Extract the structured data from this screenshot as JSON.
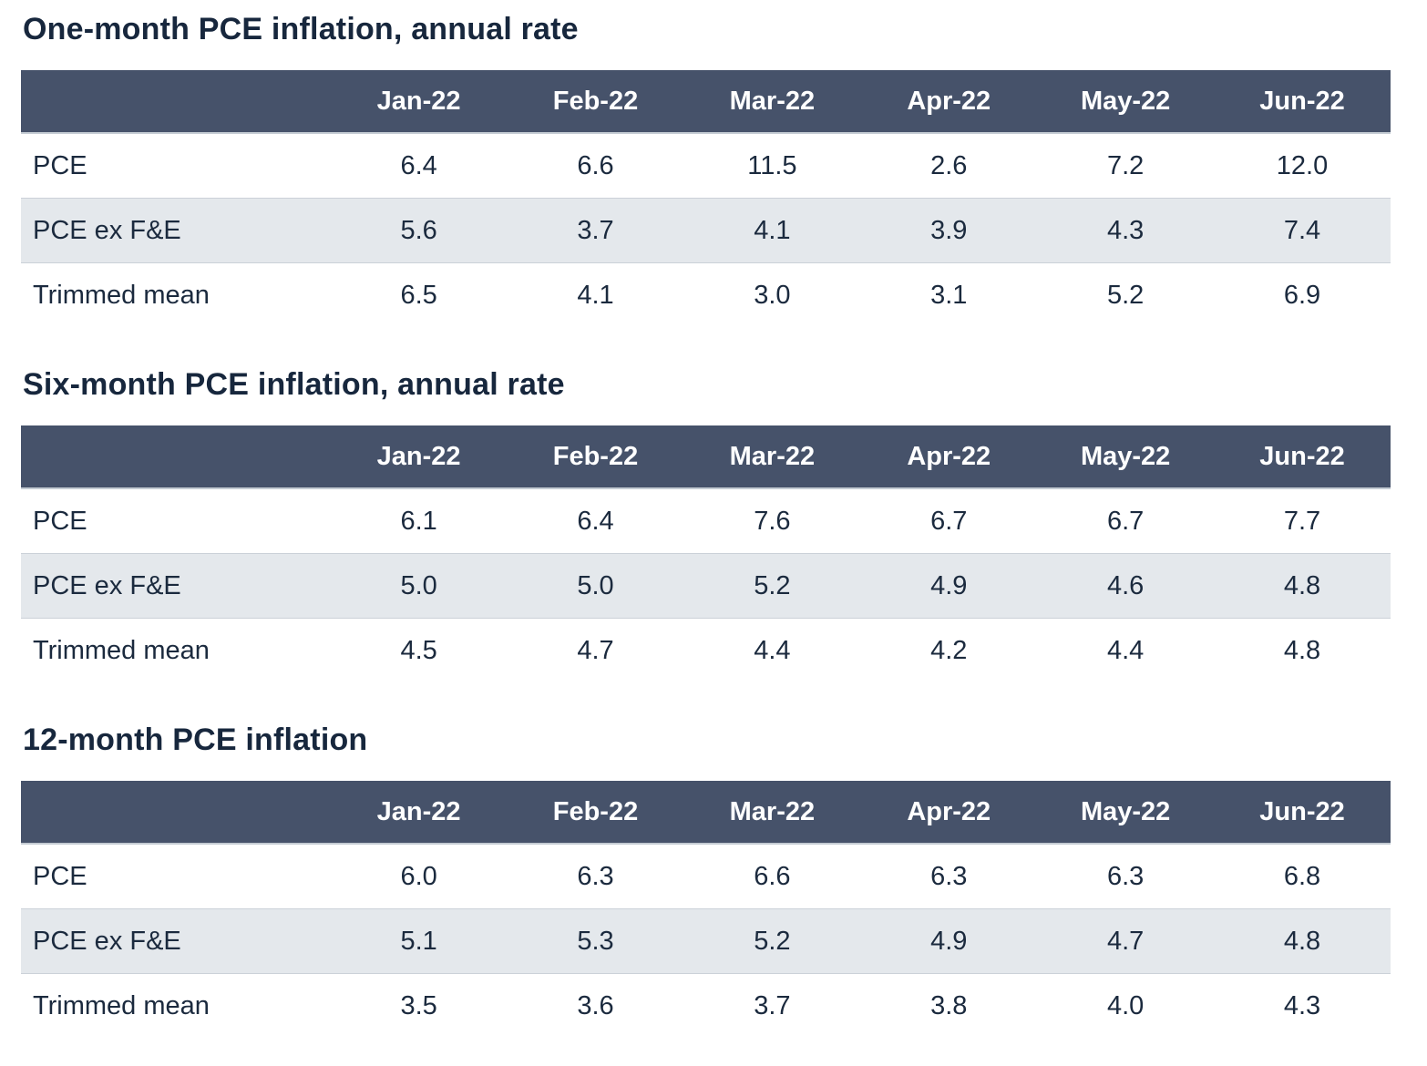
{
  "colors": {
    "header_bg": "#46526a",
    "header_text": "#ffffff",
    "zebra_row_bg": "#e4e8ec",
    "body_text": "#1b2a3e",
    "title_text": "#17273d",
    "header_border": "#c4cbd3",
    "row_border": "#cbd1d8",
    "page_bg": "#ffffff"
  },
  "months": [
    "Jan-22",
    "Feb-22",
    "Mar-22",
    "Apr-22",
    "May-22",
    "Jun-22"
  ],
  "tables": [
    {
      "title": "One-month PCE inflation, annual rate",
      "rows": [
        {
          "label": "PCE",
          "values": [
            "6.4",
            "6.6",
            "11.5",
            "2.6",
            "7.2",
            "12.0"
          ]
        },
        {
          "label": "PCE ex F&E",
          "values": [
            "5.6",
            "3.7",
            "4.1",
            "3.9",
            "4.3",
            "7.4"
          ]
        },
        {
          "label": "Trimmed mean",
          "values": [
            "6.5",
            "4.1",
            "3.0",
            "3.1",
            "5.2",
            "6.9"
          ]
        }
      ]
    },
    {
      "title": "Six-month PCE inflation, annual rate",
      "rows": [
        {
          "label": "PCE",
          "values": [
            "6.1",
            "6.4",
            "7.6",
            "6.7",
            "6.7",
            "7.7"
          ]
        },
        {
          "label": "PCE ex F&E",
          "values": [
            "5.0",
            "5.0",
            "5.2",
            "4.9",
            "4.6",
            "4.8"
          ]
        },
        {
          "label": "Trimmed mean",
          "values": [
            "4.5",
            "4.7",
            "4.4",
            "4.2",
            "4.4",
            "4.8"
          ]
        }
      ]
    },
    {
      "title": "12-month PCE inflation",
      "rows": [
        {
          "label": "PCE",
          "values": [
            "6.0",
            "6.3",
            "6.6",
            "6.3",
            "6.3",
            "6.8"
          ]
        },
        {
          "label": "PCE ex F&E",
          "values": [
            "5.1",
            "5.3",
            "5.2",
            "4.9",
            "4.7",
            "4.8"
          ]
        },
        {
          "label": "Trimmed mean",
          "values": [
            "3.5",
            "3.6",
            "3.7",
            "3.8",
            "4.0",
            "4.3"
          ]
        }
      ]
    }
  ],
  "chart_data": [
    {
      "type": "table",
      "title": "One-month PCE inflation, annual rate",
      "categories": [
        "Jan-22",
        "Feb-22",
        "Mar-22",
        "Apr-22",
        "May-22",
        "Jun-22"
      ],
      "series": [
        {
          "name": "PCE",
          "values": [
            6.4,
            6.6,
            11.5,
            2.6,
            7.2,
            12.0
          ]
        },
        {
          "name": "PCE ex F&E",
          "values": [
            5.6,
            3.7,
            4.1,
            3.9,
            4.3,
            7.4
          ]
        },
        {
          "name": "Trimmed mean",
          "values": [
            6.5,
            4.1,
            3.0,
            3.1,
            5.2,
            6.9
          ]
        }
      ]
    },
    {
      "type": "table",
      "title": "Six-month PCE inflation, annual rate",
      "categories": [
        "Jan-22",
        "Feb-22",
        "Mar-22",
        "Apr-22",
        "May-22",
        "Jun-22"
      ],
      "series": [
        {
          "name": "PCE",
          "values": [
            6.1,
            6.4,
            7.6,
            6.7,
            6.7,
            7.7
          ]
        },
        {
          "name": "PCE ex F&E",
          "values": [
            5.0,
            5.0,
            5.2,
            4.9,
            4.6,
            4.8
          ]
        },
        {
          "name": "Trimmed mean",
          "values": [
            4.5,
            4.7,
            4.4,
            4.2,
            4.4,
            4.8
          ]
        }
      ]
    },
    {
      "type": "table",
      "title": "12-month PCE inflation",
      "categories": [
        "Jan-22",
        "Feb-22",
        "Mar-22",
        "Apr-22",
        "May-22",
        "Jun-22"
      ],
      "series": [
        {
          "name": "PCE",
          "values": [
            6.0,
            6.3,
            6.6,
            6.3,
            6.3,
            6.8
          ]
        },
        {
          "name": "PCE ex F&E",
          "values": [
            5.1,
            5.3,
            5.2,
            4.9,
            4.7,
            4.8
          ]
        },
        {
          "name": "Trimmed mean",
          "values": [
            3.5,
            3.6,
            3.7,
            3.8,
            4.0,
            4.3
          ]
        }
      ]
    }
  ]
}
